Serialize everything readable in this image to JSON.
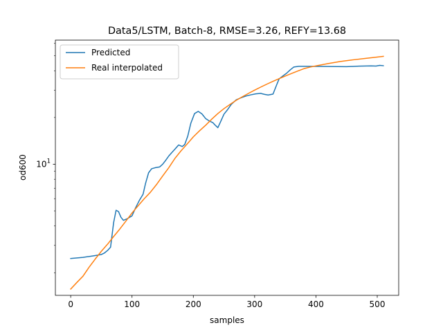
{
  "chart_data": {
    "type": "line",
    "title": "Data5/LSTM, Batch-8, RMSE=3.26, REFY=13.68",
    "xlabel": "samples",
    "ylabel": "od600",
    "xlim": [
      -25,
      535
    ],
    "ylim": [
      1.43,
      63
    ],
    "yscale": "log",
    "grid": false,
    "legend_position": "top-left",
    "x_ticks": [
      0,
      100,
      200,
      300,
      400,
      500
    ],
    "x_tick_labels": [
      "0",
      "100",
      "200",
      "300",
      "400",
      "500"
    ],
    "y_ticks": [
      10
    ],
    "y_tick_labels": [
      "10^1"
    ],
    "y_tick_label_parts": {
      "base": "10",
      "exp": "1"
    },
    "series": [
      {
        "name": "Predicted",
        "color": "#1f77b4",
        "points": [
          [
            0,
            2.47
          ],
          [
            20,
            2.51
          ],
          [
            40,
            2.58
          ],
          [
            50,
            2.62
          ],
          [
            55,
            2.68
          ],
          [
            60,
            2.78
          ],
          [
            65,
            2.92
          ],
          [
            70,
            4.2
          ],
          [
            74,
            5.05
          ],
          [
            78,
            4.95
          ],
          [
            82,
            4.55
          ],
          [
            86,
            4.35
          ],
          [
            92,
            4.45
          ],
          [
            100,
            4.65
          ],
          [
            106,
            5.25
          ],
          [
            112,
            5.85
          ],
          [
            118,
            6.4
          ],
          [
            122,
            7.5
          ],
          [
            127,
            8.8
          ],
          [
            132,
            9.35
          ],
          [
            138,
            9.5
          ],
          [
            145,
            9.6
          ],
          [
            150,
            10.0
          ],
          [
            155,
            10.6
          ],
          [
            160,
            11.3
          ],
          [
            165,
            11.9
          ],
          [
            170,
            12.5
          ],
          [
            176,
            13.3
          ],
          [
            182,
            13.0
          ],
          [
            186,
            13.4
          ],
          [
            191,
            15.2
          ],
          [
            196,
            18.4
          ],
          [
            202,
            21.2
          ],
          [
            208,
            21.9
          ],
          [
            214,
            21.1
          ],
          [
            220,
            19.7
          ],
          [
            226,
            19.0
          ],
          [
            232,
            18.5
          ],
          [
            236,
            17.8
          ],
          [
            240,
            17.2
          ],
          [
            244,
            18.6
          ],
          [
            250,
            21.0
          ],
          [
            256,
            22.5
          ],
          [
            262,
            24.3
          ],
          [
            270,
            26.0
          ],
          [
            278,
            26.8
          ],
          [
            286,
            27.5
          ],
          [
            294,
            28.0
          ],
          [
            302,
            28.4
          ],
          [
            310,
            28.6
          ],
          [
            316,
            28.2
          ],
          [
            322,
            27.9
          ],
          [
            330,
            28.3
          ],
          [
            336,
            32.5
          ],
          [
            340,
            35.5
          ],
          [
            346,
            37.0
          ],
          [
            352,
            38.5
          ],
          [
            358,
            40.5
          ],
          [
            364,
            42.3
          ],
          [
            372,
            42.7
          ],
          [
            380,
            42.7
          ],
          [
            420,
            42.6
          ],
          [
            450,
            42.5
          ],
          [
            470,
            42.8
          ],
          [
            490,
            43.0
          ],
          [
            498,
            42.9
          ],
          [
            504,
            43.3
          ],
          [
            510,
            43.1
          ]
        ]
      },
      {
        "name": "Real interpolated",
        "color": "#ff7f0e",
        "points": [
          [
            0,
            1.57
          ],
          [
            10,
            1.73
          ],
          [
            20,
            1.9
          ],
          [
            30,
            2.17
          ],
          [
            40,
            2.45
          ],
          [
            50,
            2.75
          ],
          [
            60,
            3.05
          ],
          [
            70,
            3.42
          ],
          [
            80,
            3.82
          ],
          [
            90,
            4.3
          ],
          [
            100,
            4.85
          ],
          [
            110,
            5.4
          ],
          [
            120,
            6.0
          ],
          [
            130,
            6.6
          ],
          [
            140,
            7.4
          ],
          [
            150,
            8.4
          ],
          [
            160,
            9.5
          ],
          [
            170,
            10.9
          ],
          [
            180,
            12.2
          ],
          [
            190,
            13.5
          ],
          [
            200,
            15.0
          ],
          [
            210,
            16.4
          ],
          [
            220,
            17.8
          ],
          [
            230,
            19.5
          ],
          [
            240,
            21.2
          ],
          [
            250,
            22.8
          ],
          [
            260,
            24.3
          ],
          [
            270,
            25.8
          ],
          [
            280,
            27.2
          ],
          [
            290,
            28.6
          ],
          [
            300,
            30.0
          ],
          [
            310,
            31.4
          ],
          [
            320,
            32.8
          ],
          [
            330,
            34.2
          ],
          [
            340,
            35.6
          ],
          [
            350,
            37.0
          ],
          [
            360,
            38.4
          ],
          [
            370,
            39.8
          ],
          [
            380,
            41.2
          ],
          [
            390,
            42.2
          ],
          [
            400,
            43.0
          ],
          [
            420,
            44.5
          ],
          [
            440,
            45.9
          ],
          [
            460,
            47.0
          ],
          [
            480,
            48.0
          ],
          [
            500,
            49.0
          ],
          [
            510,
            49.5
          ]
        ]
      }
    ]
  }
}
